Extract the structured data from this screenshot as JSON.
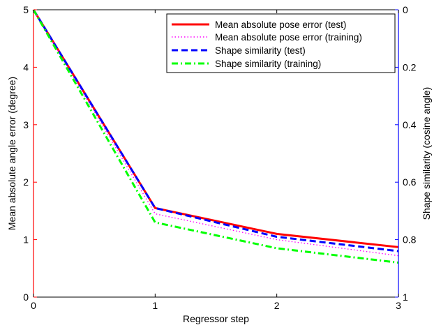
{
  "chart_data": {
    "type": "line",
    "title": "",
    "xlabel": "Regressor step",
    "ylabel_left": "Mean absolute angle error (degree)",
    "ylabel_right": "Shape similarity (cosine angle)",
    "x": [
      0,
      1,
      2,
      3
    ],
    "xlim": [
      0,
      3
    ],
    "ylim_left": [
      0,
      5
    ],
    "ylim_right": [
      0,
      1
    ],
    "right_axis_reversed": true,
    "x_ticks": [
      "0",
      "1",
      "2",
      "3"
    ],
    "left_ticks": [
      "0",
      "1",
      "2",
      "3",
      "4",
      "5"
    ],
    "right_ticks": [
      "0",
      "0.2",
      "0.4",
      "0.6",
      "0.8",
      "1"
    ],
    "left_axis_color": "#ff0000",
    "right_axis_color": "#0000ff",
    "grid": false,
    "legend_position": "top-right",
    "series": [
      {
        "name": "Mean absolute pose error (test)",
        "axis": "left",
        "values": [
          5.0,
          1.55,
          1.1,
          0.87
        ],
        "color": "#ff0000",
        "style": "solid"
      },
      {
        "name": "Mean absolute pose error (training)",
        "axis": "left",
        "values": [
          5.0,
          1.45,
          1.0,
          0.72
        ],
        "color": "#ff00ff",
        "style": "dotted"
      },
      {
        "name": "Shape similarity (test)",
        "axis": "right",
        "values": [
          0.0,
          0.69,
          0.79,
          0.84
        ],
        "color": "#0000ff",
        "style": "dashed"
      },
      {
        "name": "Shape similarity (training)",
        "axis": "right",
        "values": [
          0.0,
          0.74,
          0.83,
          0.88
        ],
        "color": "#00ff00",
        "style": "dashdot"
      }
    ]
  }
}
